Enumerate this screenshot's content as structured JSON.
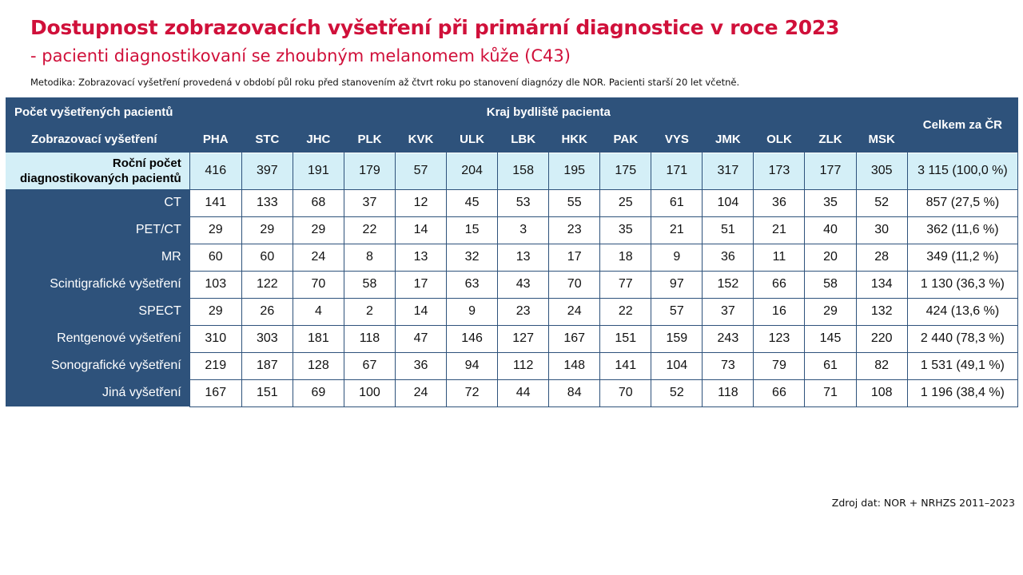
{
  "title": "Dostupnost zobrazovacích vyšetření při primární diagnostice v roce 2023",
  "subtitle": "- pacienti diagnostikovaní se zhoubným melanomem kůže (C43)",
  "methodology": "Metodika: Zobrazovací vyšetření provedená v období půl roku před stanovením až čtvrt roku po stanovení diagnózy dle NOR. Pacienti starší 20 let včetně.",
  "source": "Zdroj dat: NOR + NRHZS 2011–2023",
  "table": {
    "corner_top": "Počet vyšetřených pacientů",
    "corner_bottom": "Zobrazovací vyšetření",
    "region_header": "Kraj bydliště pacienta",
    "total_header": "Celkem za ČR",
    "regions": [
      "PHA",
      "STC",
      "JHC",
      "PLK",
      "KVK",
      "ULK",
      "LBK",
      "HKK",
      "PAK",
      "VYS",
      "JMK",
      "OLK",
      "ZLK",
      "MSK"
    ],
    "annual_row": {
      "label_line1": "Roční počet",
      "label_line2": "diagnostikovaných pacientů",
      "values": [
        "416",
        "397",
        "191",
        "179",
        "57",
        "204",
        "158",
        "195",
        "175",
        "171",
        "317",
        "173",
        "177",
        "305"
      ],
      "total": "3 115 (100,0 %)"
    },
    "rows": [
      {
        "label": "CT",
        "values": [
          "141",
          "133",
          "68",
          "37",
          "12",
          "45",
          "53",
          "55",
          "25",
          "61",
          "104",
          "36",
          "35",
          "52"
        ],
        "total": "857 (27,5 %)"
      },
      {
        "label": "PET/CT",
        "values": [
          "29",
          "29",
          "29",
          "22",
          "14",
          "15",
          "3",
          "23",
          "35",
          "21",
          "51",
          "21",
          "40",
          "30"
        ],
        "total": "362 (11,6 %)"
      },
      {
        "label": "MR",
        "values": [
          "60",
          "60",
          "24",
          "8",
          "13",
          "32",
          "13",
          "17",
          "18",
          "9",
          "36",
          "11",
          "20",
          "28"
        ],
        "total": "349 (11,2 %)"
      },
      {
        "label": "Scintigrafické vyšetření",
        "values": [
          "103",
          "122",
          "70",
          "58",
          "17",
          "63",
          "43",
          "70",
          "77",
          "97",
          "152",
          "66",
          "58",
          "134"
        ],
        "total": "1 130 (36,3 %)"
      },
      {
        "label": "SPECT",
        "values": [
          "29",
          "26",
          "4",
          "2",
          "14",
          "9",
          "23",
          "24",
          "22",
          "57",
          "37",
          "16",
          "29",
          "132"
        ],
        "total": "424 (13,6 %)"
      },
      {
        "label": "Rentgenové vyšetření",
        "values": [
          "310",
          "303",
          "181",
          "118",
          "47",
          "146",
          "127",
          "167",
          "151",
          "159",
          "243",
          "123",
          "145",
          "220"
        ],
        "total": "2 440 (78,3 %)"
      },
      {
        "label": "Sonografické vyšetření",
        "values": [
          "219",
          "187",
          "128",
          "67",
          "36",
          "94",
          "112",
          "148",
          "141",
          "104",
          "73",
          "79",
          "61",
          "82"
        ],
        "total": "1 531 (49,1 %)"
      },
      {
        "label": "Jiná vyšetření",
        "values": [
          "167",
          "151",
          "69",
          "100",
          "24",
          "72",
          "44",
          "84",
          "70",
          "52",
          "118",
          "66",
          "71",
          "108"
        ],
        "total": "1 196 (38,4 %)"
      }
    ]
  },
  "colors": {
    "title": "#d0103a",
    "header_bg": "#2e527b",
    "highlight_bg": "#d4eff7"
  }
}
